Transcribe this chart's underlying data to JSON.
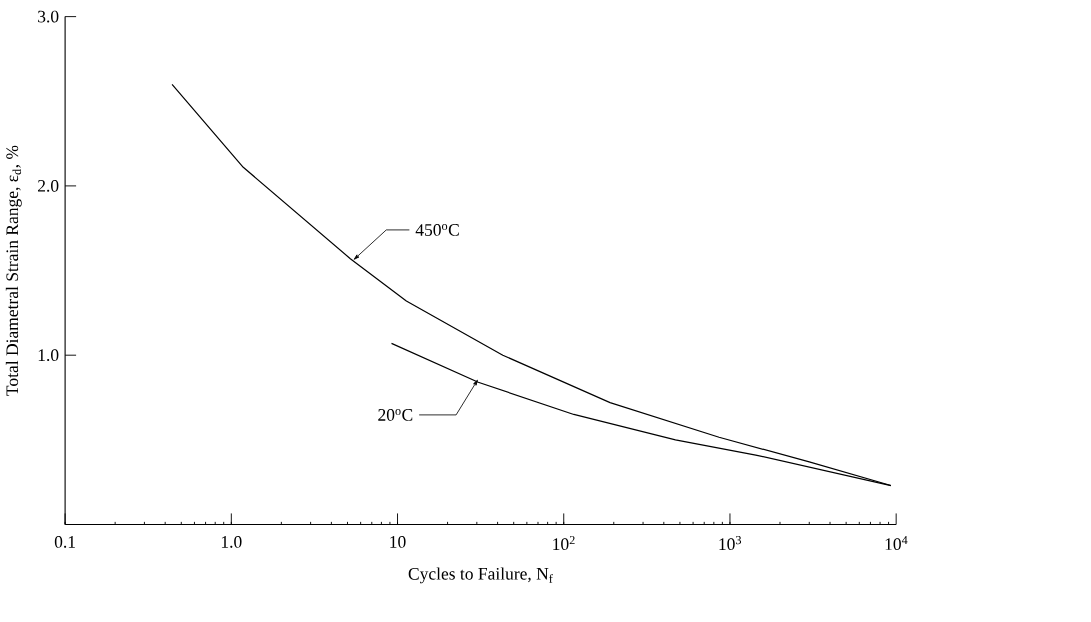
{
  "chart_data": {
    "type": "line",
    "xlabel": "Cycles to Failure, N$_{f}$",
    "ylabel": "Total Diametral Strain Range, ε$_{d}$, %",
    "log": "x",
    "xlim": [
      0.1,
      10000
    ],
    "ylim": [
      0,
      3.0
    ],
    "xticks": [
      0.1,
      {
        "value": 1,
        "label": "1.0"
      },
      10,
      {
        "value": 100,
        "label": "10$^{2}$"
      },
      {
        "value": 1000,
        "label": "10$^{3}$"
      },
      {
        "value": 10000,
        "label": "10$^{4}$"
      }
    ],
    "yticks": [
      {
        "value": 1,
        "label": "1.0"
      },
      {
        "value": 2,
        "label": "2.0"
      },
      {
        "value": 3,
        "label": "3.0"
      }
    ],
    "series": [
      {
        "color": "#000000",
        "x": [
          0.44,
          1.18,
          5.2,
          11.3,
          43,
          190,
          860,
          3000,
          9300
        ],
        "values": [
          2.6,
          2.11,
          1.57,
          1.32,
          1.0,
          0.72,
          0.515,
          0.37,
          0.23
        ]
      },
      {
        "color": "#000000",
        "x": [
          9.2,
          30.6,
          115,
          470,
          1430,
          9300
        ],
        "values": [
          1.07,
          0.84,
          0.65,
          0.5,
          0.41,
          0.23
        ]
      }
    ],
    "annotations": [
      {
        "text": "450$^{o}$C",
        "x": 5.4,
        "y": 1.56
      },
      {
        "text": "20$^{o}$C",
        "x": 30.6,
        "y": 0.86
      }
    ]
  }
}
